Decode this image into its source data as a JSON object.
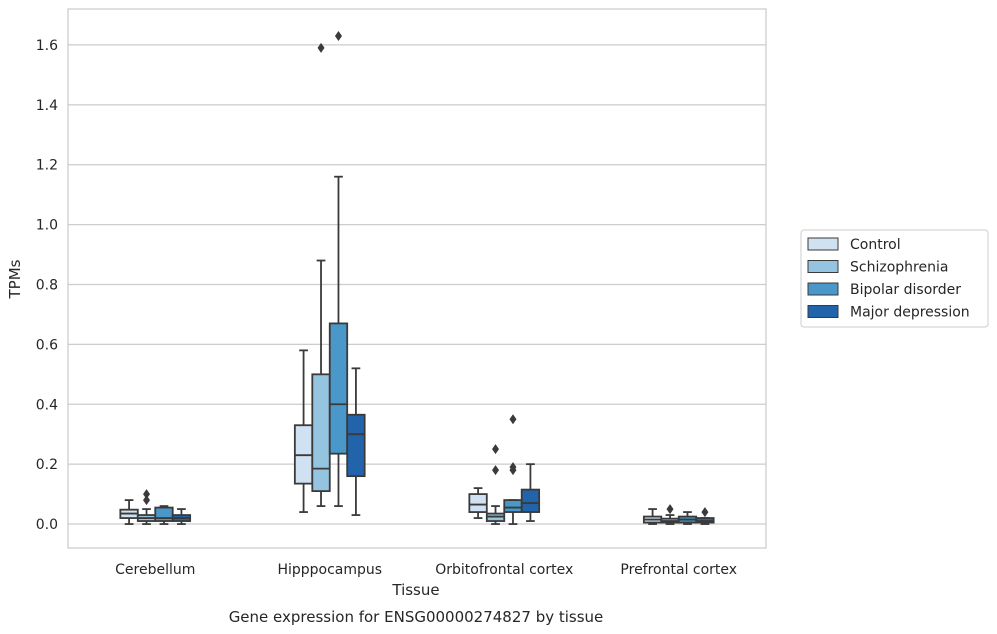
{
  "chart_data": {
    "type": "box",
    "title": "",
    "caption": "Gene expression for ENSG00000274827 by tissue",
    "xlabel": "Tissue",
    "ylabel": "TPMs",
    "ylim": [
      -0.08,
      1.72
    ],
    "yticks": [
      "0.0",
      "0.2",
      "0.4",
      "0.6",
      "0.8",
      "1.0",
      "1.2",
      "1.4",
      "1.6"
    ],
    "grid": "horizontal",
    "legend_position": "right",
    "categories": [
      "Cerebellum",
      "Hipppocampus",
      "Orbitofrontal cortex",
      "Prefrontal cortex"
    ],
    "series": [
      {
        "name": "Control",
        "color": "#d0e1f2",
        "boxes": [
          {
            "whislo": 0.0,
            "q1": 0.02,
            "med": 0.035,
            "q3": 0.048,
            "whishi": 0.08,
            "fliers": []
          },
          {
            "whislo": 0.04,
            "q1": 0.135,
            "med": 0.23,
            "q3": 0.33,
            "whishi": 0.58,
            "fliers": []
          },
          {
            "whislo": 0.02,
            "q1": 0.04,
            "med": 0.065,
            "q3": 0.1,
            "whishi": 0.12,
            "fliers": []
          },
          {
            "whislo": 0.0,
            "q1": 0.005,
            "med": 0.015,
            "q3": 0.025,
            "whishi": 0.05,
            "fliers": []
          }
        ]
      },
      {
        "name": "Schizophrenia",
        "color": "#94c4df",
        "boxes": [
          {
            "whislo": 0.0,
            "q1": 0.01,
            "med": 0.02,
            "q3": 0.03,
            "whishi": 0.05,
            "fliers": [
              0.08,
              0.1
            ]
          },
          {
            "whislo": 0.06,
            "q1": 0.11,
            "med": 0.185,
            "q3": 0.5,
            "whishi": 0.88,
            "fliers": [
              1.59
            ]
          },
          {
            "whislo": 0.0,
            "q1": 0.01,
            "med": 0.025,
            "q3": 0.035,
            "whishi": 0.06,
            "fliers": [
              0.18,
              0.25
            ]
          },
          {
            "whislo": 0.0,
            "q1": 0.005,
            "med": 0.01,
            "q3": 0.018,
            "whishi": 0.03,
            "fliers": [
              0.05
            ]
          }
        ]
      },
      {
        "name": "Bipolar disorder",
        "color": "#4a98c9",
        "boxes": [
          {
            "whislo": 0.0,
            "q1": 0.01,
            "med": 0.02,
            "q3": 0.055,
            "whishi": 0.06,
            "fliers": []
          },
          {
            "whislo": 0.06,
            "q1": 0.235,
            "med": 0.4,
            "q3": 0.67,
            "whishi": 1.16,
            "fliers": [
              1.63
            ]
          },
          {
            "whislo": 0.0,
            "q1": 0.04,
            "med": 0.055,
            "q3": 0.08,
            "whishi": 0.08,
            "fliers": [
              0.18,
              0.19,
              0.35
            ]
          },
          {
            "whislo": 0.0,
            "q1": 0.005,
            "med": 0.015,
            "q3": 0.025,
            "whishi": 0.04,
            "fliers": []
          }
        ]
      },
      {
        "name": "Major depression",
        "color": "#2164ab",
        "boxes": [
          {
            "whislo": 0.0,
            "q1": 0.01,
            "med": 0.02,
            "q3": 0.03,
            "whishi": 0.05,
            "fliers": []
          },
          {
            "whislo": 0.03,
            "q1": 0.16,
            "med": 0.3,
            "q3": 0.365,
            "whishi": 0.52,
            "fliers": []
          },
          {
            "whislo": 0.01,
            "q1": 0.04,
            "med": 0.07,
            "q3": 0.115,
            "whishi": 0.2,
            "fliers": []
          },
          {
            "whislo": 0.0,
            "q1": 0.005,
            "med": 0.01,
            "q3": 0.02,
            "whishi": 0.02,
            "fliers": [
              0.04
            ]
          }
        ]
      }
    ]
  }
}
